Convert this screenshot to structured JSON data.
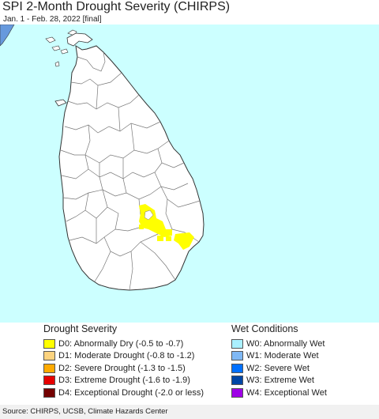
{
  "title": "SPI 2-Month Drought Severity (CHIRPS)",
  "subtitle": "Jan. 1 - Feb. 28, 2022 [final]",
  "colors": {
    "ocean": "#ccffff",
    "land": "#ffffff",
    "border": "#777777",
    "coast": "#333333",
    "mainland": "#6699dd",
    "d0": "#ffff00",
    "d1": "#fcd37f",
    "d2": "#ffaa00",
    "d3": "#e60000",
    "d4": "#730000",
    "w0": "#aaf0ff",
    "w1": "#7fb8f5",
    "w2": "#0070ff",
    "w3": "#0046a5",
    "w4": "#9e00e6"
  },
  "legend": {
    "drought": {
      "title": "Drought Severity",
      "items": [
        {
          "label": "D0: Abnormally Dry (-0.5 to -0.7)",
          "color": "#ffff00"
        },
        {
          "label": "D1: Moderate Drought (-0.8 to -1.2)",
          "color": "#fcd37f"
        },
        {
          "label": "D2: Severe Drought (-1.3 to -1.5)",
          "color": "#ffaa00"
        },
        {
          "label": "D3: Extreme Drought (-1.6 to -1.9)",
          "color": "#e60000"
        },
        {
          "label": "D4: Exceptional Drought (-2.0 or less)",
          "color": "#730000"
        }
      ]
    },
    "wet": {
      "title": "Wet Conditions",
      "items": [
        {
          "label": "W0: Abnormally Wet",
          "color": "#aaf0ff"
        },
        {
          "label": "W1: Moderate Wet",
          "color": "#7fb8f5"
        },
        {
          "label": "W2: Severe Wet",
          "color": "#0070ff"
        },
        {
          "label": "W3: Extreme Wet",
          "color": "#0046a5"
        },
        {
          "label": "W4: Exceptional Wet",
          "color": "#9e00e6"
        }
      ]
    }
  },
  "source": "Source: CHIRPS, UCSB, Climate Hazards Center"
}
